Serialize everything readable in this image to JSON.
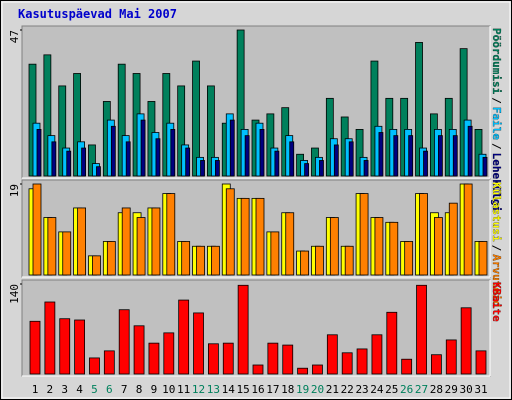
{
  "chart_data": {
    "type": "bar",
    "title": "Kasutuspäevad Mai 2007",
    "separator": "/",
    "categories": [
      "1",
      "2",
      "3",
      "4",
      "5",
      "6",
      "7",
      "8",
      "9",
      "10",
      "11",
      "12",
      "13",
      "14",
      "15",
      "16",
      "17",
      "18",
      "19",
      "20",
      "21",
      "22",
      "23",
      "24",
      "25",
      "26",
      "27",
      "28",
      "29",
      "30",
      "31"
    ],
    "category_colors": [
      "#000000",
      "#000000",
      "#000000",
      "#000000",
      "#00805c",
      "#00805c",
      "#000000",
      "#000000",
      "#000000",
      "#000000",
      "#000000",
      "#00805c",
      "#00805c",
      "#000000",
      "#000000",
      "#000000",
      "#000000",
      "#000000",
      "#00805c",
      "#00805c",
      "#000000",
      "#000000",
      "#000000",
      "#000000",
      "#000000",
      "#00805c",
      "#00805c",
      "#000000",
      "#000000",
      "#000000",
      "#000000"
    ],
    "panels": [
      {
        "ylim": [
          0,
          47
        ],
        "yticks": [
          47
        ],
        "series": [
          {
            "name": "Pöördumisi",
            "color": "#00805c",
            "values": [
              36,
              39,
              29,
              33,
              10,
              24,
              36,
              33,
              24,
              33,
              29,
              37,
              29,
              17,
              47,
              18,
              20,
              22,
              7,
              9,
              25,
              19,
              15,
              37,
              25,
              25,
              43,
              20,
              25,
              41,
              15
            ]
          },
          {
            "name": "Faile",
            "color": "#00c0ff",
            "values": [
              17,
              13,
              9,
              11,
              4,
              18,
              13,
              20,
              14,
              17,
              10,
              6,
              6,
              20,
              15,
              17,
              9,
              13,
              5,
              6,
              12,
              12,
              6,
              16,
              15,
              15,
              9,
              15,
              15,
              18,
              7
            ]
          },
          {
            "name": "Lehekülgi",
            "color": "#00007f",
            "values": [
              15,
              11,
              8,
              9,
              3,
              16,
              11,
              18,
              12,
              15,
              9,
              5,
              5,
              18,
              13,
              15,
              8,
              11,
              4,
              5,
              10,
              11,
              5,
              14,
              13,
              13,
              8,
              13,
              13,
              16,
              6
            ]
          }
        ]
      },
      {
        "ylim": [
          0,
          19
        ],
        "yticks": [
          19
        ],
        "series": [
          {
            "name": "Külastusi",
            "color": "#ffff00",
            "values": [
              18,
              12,
              9,
              14,
              4,
              7,
              13,
              13,
              14,
              17,
              7,
              6,
              6,
              19,
              16,
              16,
              9,
              13,
              5,
              6,
              12,
              6,
              17,
              12,
              11,
              7,
              17,
              13,
              13,
              19,
              7
            ]
          },
          {
            "name": "Arvuteid",
            "color": "#ff8000",
            "values": [
              19,
              12,
              9,
              14,
              4,
              7,
              14,
              12,
              14,
              17,
              7,
              6,
              6,
              18,
              16,
              16,
              9,
              13,
              5,
              6,
              12,
              6,
              17,
              12,
              11,
              7,
              17,
              12,
              15,
              19,
              7
            ]
          }
        ]
      },
      {
        "ylim": [
          0,
          140
        ],
        "yticks": [
          140
        ],
        "series": [
          {
            "name": "KBaite",
            "color": "#ff0000",
            "values": [
              82,
              112,
              86,
              84,
              25,
              36,
              100,
              75,
              48,
              64,
              115,
              95,
              47,
              48,
              138,
              14,
              48,
              45,
              9,
              14,
              61,
              33,
              39,
              61,
              96,
              23,
              138,
              30,
              53,
              103,
              36
            ]
          }
        ]
      }
    ]
  }
}
